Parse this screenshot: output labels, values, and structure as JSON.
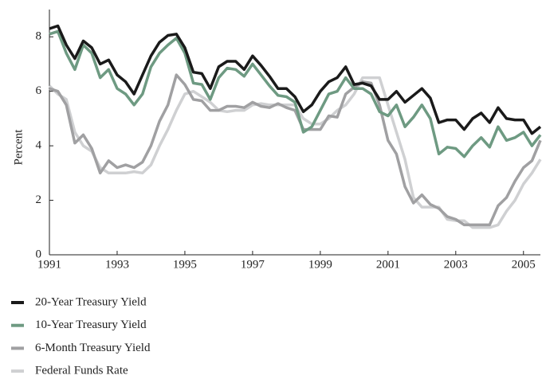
{
  "chart_data": {
    "type": "line",
    "ylabel": "Percent",
    "x": [
      1991,
      1991.25,
      1991.5,
      1991.75,
      1992,
      1992.25,
      1992.5,
      1992.75,
      1993,
      1993.25,
      1993.5,
      1993.75,
      1994,
      1994.25,
      1994.5,
      1994.75,
      1995,
      1995.25,
      1995.5,
      1995.75,
      1996,
      1996.25,
      1996.5,
      1996.75,
      1997,
      1997.25,
      1997.5,
      1997.75,
      1998,
      1998.25,
      1998.5,
      1998.75,
      1999,
      1999.25,
      1999.5,
      1999.75,
      2000,
      2000.25,
      2000.5,
      2000.75,
      2001,
      2001.25,
      2001.5,
      2001.75,
      2002,
      2002.25,
      2002.5,
      2002.75,
      2003,
      2003.25,
      2003.5,
      2003.75,
      2004,
      2004.25,
      2004.5,
      2004.75,
      2005,
      2005.25,
      2005.5
    ],
    "series": [
      {
        "name": "Federal Funds Rate",
        "color": "#cfd0d2",
        "values": [
          6.2,
          5.9,
          5.7,
          4.5,
          4.0,
          3.8,
          3.2,
          3.0,
          3.0,
          3.0,
          3.05,
          3.0,
          3.3,
          4.0,
          4.6,
          5.3,
          5.9,
          6.0,
          5.8,
          5.6,
          5.3,
          5.25,
          5.3,
          5.3,
          5.5,
          5.55,
          5.5,
          5.5,
          5.5,
          5.5,
          5.0,
          4.8,
          4.8,
          5.0,
          5.3,
          5.5,
          5.9,
          6.5,
          6.5,
          6.5,
          5.5,
          4.5,
          3.5,
          2.1,
          1.75,
          1.75,
          1.75,
          1.3,
          1.25,
          1.25,
          1.0,
          1.0,
          1.0,
          1.1,
          1.6,
          2.0,
          2.6,
          3.0,
          3.5
        ]
      },
      {
        "name": "6-Month Treasury Yield",
        "color": "#a0a0a2",
        "values": [
          6.1,
          6.0,
          5.5,
          4.1,
          4.4,
          3.9,
          3.0,
          3.45,
          3.2,
          3.3,
          3.2,
          3.4,
          4.0,
          4.9,
          5.5,
          6.6,
          6.25,
          5.7,
          5.65,
          5.3,
          5.3,
          5.45,
          5.45,
          5.4,
          5.6,
          5.45,
          5.4,
          5.55,
          5.4,
          5.3,
          4.6,
          4.6,
          4.6,
          5.1,
          5.05,
          5.9,
          6.15,
          6.35,
          6.3,
          5.5,
          4.2,
          3.7,
          2.5,
          1.9,
          2.2,
          1.85,
          1.7,
          1.4,
          1.3,
          1.1,
          1.1,
          1.1,
          1.1,
          1.8,
          2.1,
          2.7,
          3.2,
          3.45,
          4.2
        ]
      },
      {
        "name": "10-Year Treasury Yield",
        "color": "#6e9a82",
        "values": [
          8.1,
          8.2,
          7.4,
          6.8,
          7.7,
          7.4,
          6.5,
          6.8,
          6.1,
          5.9,
          5.5,
          5.9,
          6.9,
          7.4,
          7.7,
          7.95,
          7.4,
          6.3,
          6.25,
          5.7,
          6.5,
          6.85,
          6.8,
          6.55,
          7.0,
          6.6,
          6.2,
          5.85,
          5.8,
          5.6,
          4.5,
          4.7,
          5.3,
          5.9,
          6.0,
          6.5,
          6.1,
          6.1,
          5.9,
          5.25,
          5.1,
          5.5,
          4.7,
          5.05,
          5.5,
          5.0,
          3.7,
          3.95,
          3.9,
          3.6,
          4.0,
          4.3,
          3.95,
          4.7,
          4.2,
          4.3,
          4.5,
          4.0,
          4.4
        ]
      },
      {
        "name": "20-Year Treasury Yield",
        "color": "#1a1a1a",
        "values": [
          8.3,
          8.4,
          7.7,
          7.2,
          7.85,
          7.6,
          7.0,
          7.15,
          6.6,
          6.35,
          5.9,
          6.6,
          7.3,
          7.8,
          8.05,
          8.1,
          7.6,
          6.7,
          6.65,
          6.1,
          6.9,
          7.1,
          7.1,
          6.8,
          7.3,
          6.95,
          6.55,
          6.1,
          6.1,
          5.8,
          5.25,
          5.5,
          6.0,
          6.35,
          6.5,
          6.9,
          6.25,
          6.3,
          6.2,
          5.7,
          5.7,
          6.0,
          5.6,
          5.85,
          6.1,
          5.75,
          4.85,
          4.95,
          4.95,
          4.6,
          5.0,
          5.2,
          4.85,
          5.4,
          5.0,
          4.95,
          4.95,
          4.45,
          4.7
        ]
      }
    ],
    "legend_order": [
      3,
      2,
      1,
      0
    ],
    "xlim": [
      1991,
      2005.5
    ],
    "xticks": [
      1991,
      1993,
      1995,
      1997,
      1999,
      2001,
      2003,
      2005
    ],
    "ylim": [
      0,
      9
    ],
    "yticks": [
      0,
      2,
      4,
      6,
      8
    ],
    "grid": false
  }
}
